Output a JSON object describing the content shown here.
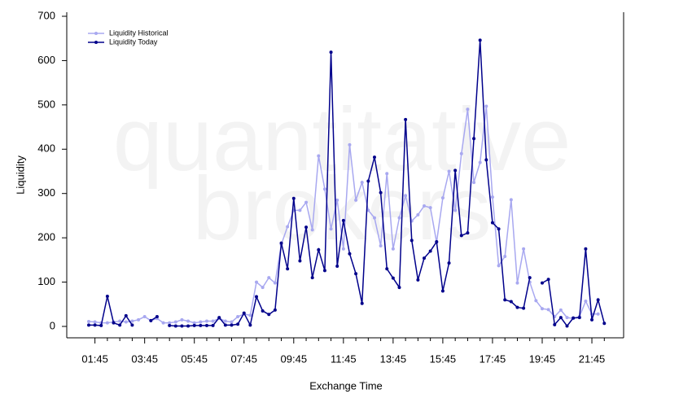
{
  "chart_data": {
    "type": "line",
    "watermark": [
      "quantitative",
      "brokers"
    ],
    "xlabel": "Exchange Time",
    "ylabel": "Liquidity",
    "categories": [
      null,
      "01:45",
      null,
      null,
      null,
      null,
      null,
      null,
      null,
      "03:45",
      null,
      null,
      null,
      null,
      null,
      null,
      null,
      "05:45",
      null,
      null,
      null,
      null,
      null,
      null,
      null,
      "07:45",
      null,
      null,
      null,
      null,
      null,
      null,
      null,
      "09:45",
      null,
      null,
      null,
      null,
      null,
      null,
      null,
      "11:45",
      null,
      null,
      null,
      null,
      null,
      null,
      null,
      "13:45",
      null,
      null,
      null,
      null,
      null,
      null,
      null,
      "15:45",
      null,
      null,
      null,
      null,
      null,
      null,
      null,
      "17:45",
      null,
      null,
      null,
      null,
      null,
      null,
      null,
      "19:45",
      null,
      null,
      null,
      null,
      null,
      null,
      null,
      "21:45",
      null,
      null
    ],
    "series": [
      {
        "name": "Liquidity Historical",
        "color": "#a8a8f0",
        "values": [
          11,
          10,
          8,
          8,
          10,
          12,
          10,
          12,
          15,
          22,
          13,
          18,
          8,
          8,
          10,
          15,
          12,
          8,
          10,
          12,
          12,
          18,
          12,
          10,
          22,
          28,
          25,
          100,
          88,
          110,
          98,
          185,
          225,
          262,
          262,
          280,
          218,
          385,
          310,
          220,
          285,
          175,
          410,
          285,
          325,
          262,
          245,
          182,
          345,
          175,
          245,
          295,
          238,
          252,
          272,
          268,
          190,
          290,
          350,
          262,
          390,
          490,
          325,
          370,
          497,
          292,
          137,
          158,
          286,
          98,
          175,
          100,
          58,
          40,
          38,
          22,
          37,
          20,
          18,
          22,
          57,
          28,
          28,
          null
        ]
      },
      {
        "name": "Liquidity Today",
        "color": "#00008b",
        "values": [
          3,
          3,
          2,
          68,
          8,
          3,
          24,
          3,
          null,
          null,
          13,
          22,
          null,
          2,
          1,
          1,
          1,
          2,
          2,
          2,
          2,
          20,
          3,
          3,
          5,
          30,
          3,
          67,
          35,
          27,
          37,
          188,
          130,
          289,
          148,
          224,
          110,
          173,
          126,
          619,
          136,
          239,
          164,
          119,
          52,
          328,
          382,
          302,
          130,
          109,
          88,
          467,
          194,
          105,
          154,
          170,
          191,
          80,
          143,
          352,
          205,
          211,
          424,
          646,
          376,
          234,
          220,
          60,
          56,
          43,
          41,
          110,
          null,
          98,
          106,
          4,
          20,
          1,
          19,
          20,
          175,
          15,
          60,
          7
        ]
      }
    ],
    "ylim": [
      0,
      700
    ],
    "yticks": [
      0,
      100,
      200,
      300,
      400,
      500,
      600,
      700
    ],
    "legend": "top-left"
  }
}
